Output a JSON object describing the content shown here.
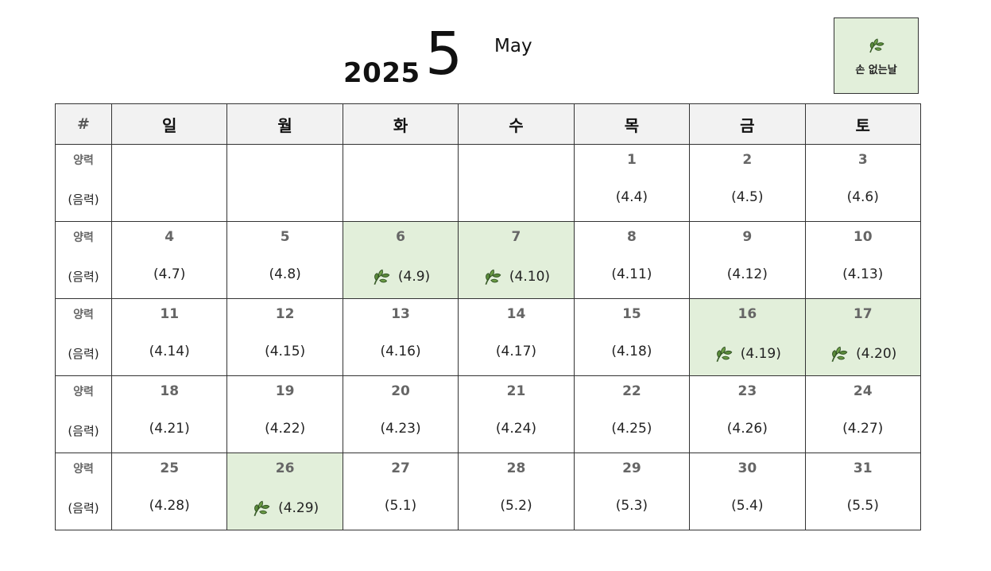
{
  "header": {
    "year": "2025",
    "month_number": "5",
    "month_name": "May"
  },
  "legend": {
    "icon": "leaf-icon",
    "label": "손 없는날",
    "color": "#e2efda"
  },
  "table": {
    "corner_label": "#",
    "weekdays": [
      "일",
      "월",
      "화",
      "수",
      "목",
      "금",
      "토"
    ],
    "row_label_solar": "양력",
    "row_label_lunar": "(음력)",
    "weeks": [
      [
        {
          "solar": "",
          "lunar": "",
          "highlight": false
        },
        {
          "solar": "",
          "lunar": "",
          "highlight": false
        },
        {
          "solar": "",
          "lunar": "",
          "highlight": false
        },
        {
          "solar": "",
          "lunar": "",
          "highlight": false
        },
        {
          "solar": "1",
          "lunar": "(4.4)",
          "highlight": false
        },
        {
          "solar": "2",
          "lunar": "(4.5)",
          "highlight": false
        },
        {
          "solar": "3",
          "lunar": "(4.6)",
          "highlight": false
        }
      ],
      [
        {
          "solar": "4",
          "lunar": "(4.7)",
          "highlight": false
        },
        {
          "solar": "5",
          "lunar": "(4.8)",
          "highlight": false
        },
        {
          "solar": "6",
          "lunar": "(4.9)",
          "highlight": true
        },
        {
          "solar": "7",
          "lunar": "(4.10)",
          "highlight": true
        },
        {
          "solar": "8",
          "lunar": "(4.11)",
          "highlight": false
        },
        {
          "solar": "9",
          "lunar": "(4.12)",
          "highlight": false
        },
        {
          "solar": "10",
          "lunar": "(4.13)",
          "highlight": false
        }
      ],
      [
        {
          "solar": "11",
          "lunar": "(4.14)",
          "highlight": false
        },
        {
          "solar": "12",
          "lunar": "(4.15)",
          "highlight": false
        },
        {
          "solar": "13",
          "lunar": "(4.16)",
          "highlight": false
        },
        {
          "solar": "14",
          "lunar": "(4.17)",
          "highlight": false
        },
        {
          "solar": "15",
          "lunar": "(4.18)",
          "highlight": false
        },
        {
          "solar": "16",
          "lunar": "(4.19)",
          "highlight": true
        },
        {
          "solar": "17",
          "lunar": "(4.20)",
          "highlight": true
        }
      ],
      [
        {
          "solar": "18",
          "lunar": "(4.21)",
          "highlight": false
        },
        {
          "solar": "19",
          "lunar": "(4.22)",
          "highlight": false
        },
        {
          "solar": "20",
          "lunar": "(4.23)",
          "highlight": false
        },
        {
          "solar": "21",
          "lunar": "(4.24)",
          "highlight": false
        },
        {
          "solar": "22",
          "lunar": "(4.25)",
          "highlight": false
        },
        {
          "solar": "23",
          "lunar": "(4.26)",
          "highlight": false
        },
        {
          "solar": "24",
          "lunar": "(4.27)",
          "highlight": false
        }
      ],
      [
        {
          "solar": "25",
          "lunar": "(4.28)",
          "highlight": false
        },
        {
          "solar": "26",
          "lunar": "(4.29)",
          "highlight": true
        },
        {
          "solar": "27",
          "lunar": "(5.1)",
          "highlight": false
        },
        {
          "solar": "28",
          "lunar": "(5.2)",
          "highlight": false
        },
        {
          "solar": "29",
          "lunar": "(5.3)",
          "highlight": false
        },
        {
          "solar": "30",
          "lunar": "(5.4)",
          "highlight": false
        },
        {
          "solar": "31",
          "lunar": "(5.5)",
          "highlight": false
        }
      ]
    ]
  }
}
